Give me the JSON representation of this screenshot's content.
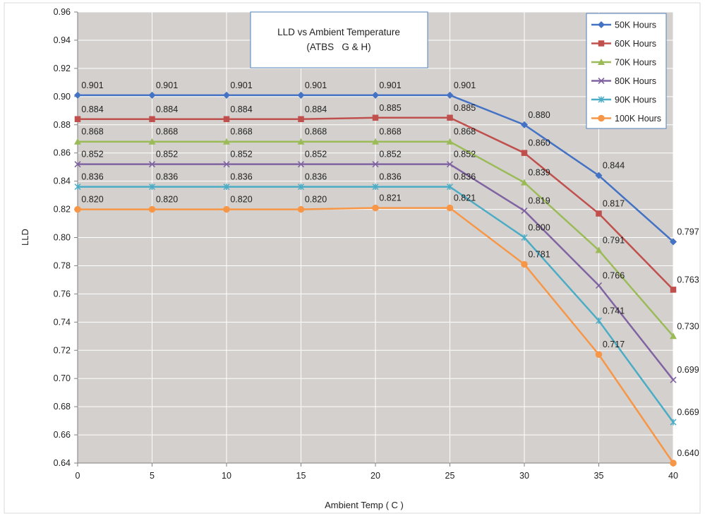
{
  "chart_data": {
    "type": "line",
    "title": "LLD vs Ambient Temperature",
    "subtitle": "(ATBS   G & H)",
    "xlabel": "Ambient Temp ( C )",
    "ylabel": "LLD",
    "x": [
      0,
      5,
      10,
      15,
      20,
      25,
      30,
      35,
      40
    ],
    "xlim": [
      0,
      40
    ],
    "ylim": [
      0.64,
      0.96
    ],
    "y_ticks": [
      "0.64",
      "0.66",
      "0.68",
      "0.70",
      "0.72",
      "0.74",
      "0.76",
      "0.78",
      "0.80",
      "0.82",
      "0.84",
      "0.86",
      "0.88",
      "0.90",
      "0.92",
      "0.94",
      "0.96"
    ],
    "grid": true,
    "legend_position": "top-right",
    "colors": {
      "plot_background": "#d4d0cd",
      "grid": "#ffffff"
    },
    "series": [
      {
        "name": "50K Hours",
        "color": "#4472c4",
        "marker": "diamond",
        "values": [
          0.901,
          0.901,
          0.901,
          0.901,
          0.901,
          0.901,
          0.88,
          0.844,
          0.797
        ],
        "labels": [
          "0.901",
          "0.901",
          "0.901",
          "0.901",
          "0.901",
          "0.901",
          "0.880",
          "0.844",
          "0.797"
        ]
      },
      {
        "name": "60K Hours",
        "color": "#c0504d",
        "marker": "square",
        "values": [
          0.884,
          0.884,
          0.884,
          0.884,
          0.885,
          0.885,
          0.86,
          0.817,
          0.763
        ],
        "labels": [
          "0.884",
          "0.884",
          "0.884",
          "0.884",
          "0.885",
          "0.885",
          "0.860",
          "0.817",
          "0.763"
        ]
      },
      {
        "name": "70K Hours",
        "color": "#9bbb59",
        "marker": "triangle",
        "values": [
          0.868,
          0.868,
          0.868,
          0.868,
          0.868,
          0.868,
          0.839,
          0.791,
          0.73
        ],
        "labels": [
          "0.868",
          "0.868",
          "0.868",
          "0.868",
          "0.868",
          "0.868",
          "0.839",
          "0.791",
          "0.730"
        ]
      },
      {
        "name": "80K Hours",
        "color": "#8064a2",
        "marker": "x",
        "values": [
          0.852,
          0.852,
          0.852,
          0.852,
          0.852,
          0.852,
          0.819,
          0.766,
          0.699
        ],
        "labels": [
          "0.852",
          "0.852",
          "0.852",
          "0.852",
          "0.852",
          "0.852",
          "0.819",
          "0.766",
          "0.699"
        ]
      },
      {
        "name": "90K Hours",
        "color": "#4bacc6",
        "marker": "star",
        "values": [
          0.836,
          0.836,
          0.836,
          0.836,
          0.836,
          0.836,
          0.8,
          0.741,
          0.669
        ],
        "labels": [
          "0.836",
          "0.836",
          "0.836",
          "0.836",
          "0.836",
          "0.836",
          "0.800",
          "0.741",
          "0.669"
        ]
      },
      {
        "name": "100K Hours",
        "color": "#f79646",
        "marker": "circle",
        "values": [
          0.82,
          0.82,
          0.82,
          0.82,
          0.821,
          0.821,
          0.781,
          0.717,
          0.64
        ],
        "labels": [
          "0.820",
          "0.820",
          "0.820",
          "0.820",
          "0.821",
          "0.821",
          "0.781",
          "0.717",
          "0.640"
        ]
      }
    ]
  }
}
